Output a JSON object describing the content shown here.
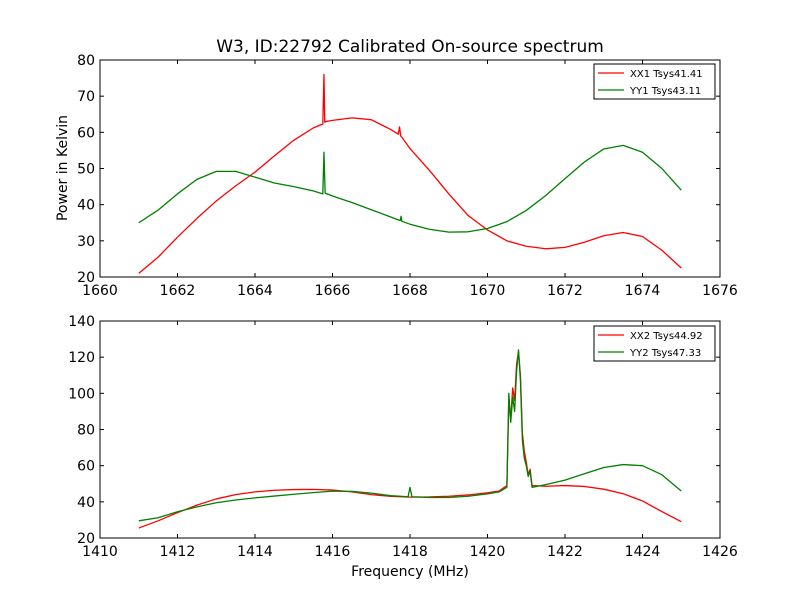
{
  "chart_data": [
    {
      "type": "line",
      "title": "W3, ID:22792 Calibrated On-source spectrum",
      "xlabel": "",
      "ylabel": "Power in Kelvin",
      "xlim": [
        1660,
        1676
      ],
      "ylim": [
        20,
        80
      ],
      "x_ticks": [
        1660,
        1662,
        1664,
        1666,
        1668,
        1670,
        1672,
        1674,
        1676
      ],
      "y_ticks": [
        20,
        30,
        40,
        50,
        60,
        70,
        80
      ],
      "grid": false,
      "legend_position": "top-right",
      "series": [
        {
          "name": "XX1 Tsys41.41",
          "color": "#ff0000",
          "x": [
            1661.0,
            1661.5,
            1662.0,
            1662.5,
            1663.0,
            1663.5,
            1664.0,
            1664.5,
            1665.0,
            1665.5,
            1665.75,
            1665.78,
            1665.8,
            1665.84,
            1666.0,
            1666.5,
            1667.0,
            1667.5,
            1667.7,
            1667.73,
            1667.76,
            1667.8,
            1668.0,
            1668.5,
            1669.0,
            1669.5,
            1670.0,
            1670.5,
            1671.0,
            1671.5,
            1672.0,
            1672.5,
            1673.0,
            1673.5,
            1674.0,
            1674.5,
            1675.0
          ],
          "values": [
            21.0,
            25.5,
            31.0,
            36.2,
            41.0,
            45.2,
            49.0,
            53.5,
            57.8,
            61.2,
            62.3,
            76.0,
            62.8,
            63.0,
            63.3,
            64.0,
            63.5,
            60.8,
            59.5,
            61.5,
            59.0,
            58.5,
            55.5,
            49.5,
            43.0,
            37.0,
            33.0,
            30.0,
            28.5,
            27.8,
            28.2,
            29.6,
            31.4,
            32.3,
            31.2,
            27.4,
            22.5
          ]
        },
        {
          "name": "YY1 Tsys43.11",
          "color": "#008000",
          "x": [
            1661.0,
            1661.5,
            1662.0,
            1662.5,
            1663.0,
            1663.5,
            1664.0,
            1664.5,
            1665.0,
            1665.5,
            1665.75,
            1665.78,
            1665.81,
            1666.0,
            1666.5,
            1667.0,
            1667.5,
            1667.75,
            1667.77,
            1667.79,
            1668.0,
            1668.5,
            1669.0,
            1669.5,
            1670.0,
            1670.5,
            1671.0,
            1671.5,
            1672.0,
            1672.5,
            1673.0,
            1673.5,
            1674.0,
            1674.5,
            1675.0
          ],
          "values": [
            35.0,
            38.5,
            43.0,
            47.0,
            49.2,
            49.2,
            47.6,
            46.0,
            45.0,
            43.8,
            43.0,
            54.5,
            43.2,
            42.4,
            40.6,
            38.6,
            36.6,
            35.6,
            36.8,
            35.4,
            34.6,
            33.2,
            32.4,
            32.5,
            33.4,
            35.3,
            38.4,
            42.5,
            47.2,
            51.8,
            55.4,
            56.4,
            54.5,
            50.0,
            44.0
          ]
        }
      ]
    },
    {
      "type": "line",
      "title": "",
      "xlabel": "Frequency (MHz)",
      "ylabel": "",
      "xlim": [
        1410,
        1426
      ],
      "ylim": [
        20,
        140
      ],
      "x_ticks": [
        1410,
        1412,
        1414,
        1416,
        1418,
        1420,
        1422,
        1424,
        1426
      ],
      "y_ticks": [
        20,
        40,
        60,
        80,
        100,
        120,
        140
      ],
      "grid": false,
      "legend_position": "top-right",
      "series": [
        {
          "name": "XX2 Tsys44.92",
          "color": "#ff0000",
          "x": [
            1411.0,
            1411.5,
            1412.0,
            1412.5,
            1413.0,
            1413.5,
            1414.0,
            1414.5,
            1415.0,
            1415.5,
            1416.0,
            1416.5,
            1417.0,
            1417.5,
            1418.0,
            1418.5,
            1419.0,
            1419.5,
            1420.0,
            1420.3,
            1420.5,
            1420.55,
            1420.6,
            1420.65,
            1420.7,
            1420.75,
            1420.8,
            1420.85,
            1420.9,
            1420.95,
            1421.0,
            1421.05,
            1421.1,
            1421.15,
            1421.5,
            1422.0,
            1422.5,
            1423.0,
            1423.5,
            1424.0,
            1424.5,
            1425.0
          ],
          "values": [
            25.5,
            29.5,
            34.0,
            38.2,
            41.6,
            44.0,
            45.5,
            46.4,
            46.8,
            46.9,
            46.5,
            45.5,
            44.0,
            43.0,
            42.6,
            42.7,
            43.1,
            43.8,
            45.0,
            46.0,
            49.0,
            95.0,
            86.0,
            103.0,
            96.0,
            116.0,
            123.0,
            110.0,
            78.0,
            68.0,
            62.0,
            55.0,
            58.0,
            49.0,
            48.6,
            49.0,
            48.5,
            47.0,
            44.5,
            40.5,
            34.6,
            29.0
          ]
        },
        {
          "name": "YY2 Tsys47.33",
          "color": "#008000",
          "x": [
            1411.0,
            1411.5,
            1412.0,
            1412.5,
            1413.0,
            1413.5,
            1414.0,
            1414.5,
            1415.0,
            1415.5,
            1416.0,
            1416.5,
            1417.0,
            1417.5,
            1417.95,
            1418.0,
            1418.05,
            1418.5,
            1419.0,
            1419.5,
            1420.0,
            1420.3,
            1420.5,
            1420.55,
            1420.6,
            1420.65,
            1420.7,
            1420.75,
            1420.8,
            1420.85,
            1420.9,
            1420.95,
            1421.0,
            1421.05,
            1421.1,
            1421.15,
            1421.5,
            1422.0,
            1422.5,
            1423.0,
            1423.5,
            1424.0,
            1424.5,
            1425.0
          ],
          "values": [
            29.5,
            31.2,
            34.5,
            37.2,
            39.5,
            41.0,
            42.2,
            43.2,
            44.2,
            45.1,
            45.9,
            45.8,
            44.8,
            43.4,
            42.8,
            48.0,
            42.8,
            42.4,
            42.4,
            43.1,
            44.4,
            45.5,
            48.0,
            100.0,
            84.0,
            98.0,
            90.0,
            112.0,
            124.0,
            107.0,
            74.0,
            64.0,
            60.0,
            54.0,
            57.0,
            48.0,
            49.5,
            52.0,
            55.5,
            59.0,
            60.6,
            60.0,
            55.0,
            46.0
          ]
        }
      ]
    }
  ]
}
